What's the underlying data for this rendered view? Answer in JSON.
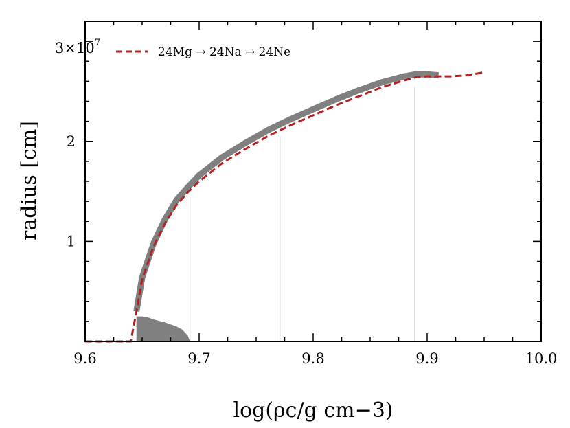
{
  "chart_data": {
    "type": "line",
    "xlabel": "log(ρc/g cm−3)",
    "ylabel": "radius [cm]",
    "xlim": [
      9.6,
      10.0
    ],
    "ylim": [
      0,
      3.2
    ],
    "y_exponent_label": "3×10",
    "y_exponent_power": "7",
    "x_ticks": [
      "9.6",
      "9.7",
      "9.8",
      "9.9",
      "10.0"
    ],
    "x_tick_values": [
      9.6,
      9.7,
      9.8,
      9.9,
      10.0
    ],
    "y_ticks": [
      "1",
      "2"
    ],
    "y_tick_values": [
      1,
      2
    ],
    "legend": {
      "placement": "top-left",
      "label": "24Mg → 24Na → 24Ne"
    },
    "series": [
      {
        "name": "24Mg → 24Na → 24Ne",
        "style": "dashed",
        "color": "#b22222",
        "x": [
          9.6,
          9.64,
          9.645,
          9.65,
          9.66,
          9.67,
          9.68,
          9.69,
          9.7,
          9.72,
          9.74,
          9.76,
          9.78,
          9.8,
          9.82,
          9.84,
          9.86,
          9.88,
          9.89,
          9.9,
          9.92,
          9.935,
          9.95
        ],
        "y": [
          0.0,
          0.0,
          0.3,
          0.62,
          0.95,
          1.18,
          1.36,
          1.49,
          1.6,
          1.78,
          1.92,
          2.05,
          2.16,
          2.26,
          2.36,
          2.45,
          2.54,
          2.61,
          2.64,
          2.65,
          2.65,
          2.66,
          2.69
        ]
      },
      {
        "name": "",
        "style": "band",
        "color": "#808080",
        "x": [
          9.645,
          9.65,
          9.66,
          9.67,
          9.68,
          9.69,
          9.7,
          9.72,
          9.74,
          9.76,
          9.78,
          9.8,
          9.82,
          9.84,
          9.86,
          9.88,
          9.89,
          9.9,
          9.91
        ],
        "y": [
          0.3,
          0.64,
          0.98,
          1.22,
          1.41,
          1.54,
          1.66,
          1.84,
          1.98,
          2.11,
          2.22,
          2.32,
          2.42,
          2.51,
          2.59,
          2.65,
          2.67,
          2.67,
          2.66
        ]
      },
      {
        "name": "",
        "style": "filled",
        "color": "#808080",
        "x": [
          9.645,
          9.65,
          9.655,
          9.66,
          9.67,
          9.68,
          9.685,
          9.69,
          9.692
        ],
        "y": [
          0.25,
          0.25,
          0.24,
          0.22,
          0.19,
          0.15,
          0.12,
          0.06,
          0.0
        ]
      }
    ],
    "vertical_lines_x": [
      9.692,
      9.771,
      9.889
    ]
  }
}
